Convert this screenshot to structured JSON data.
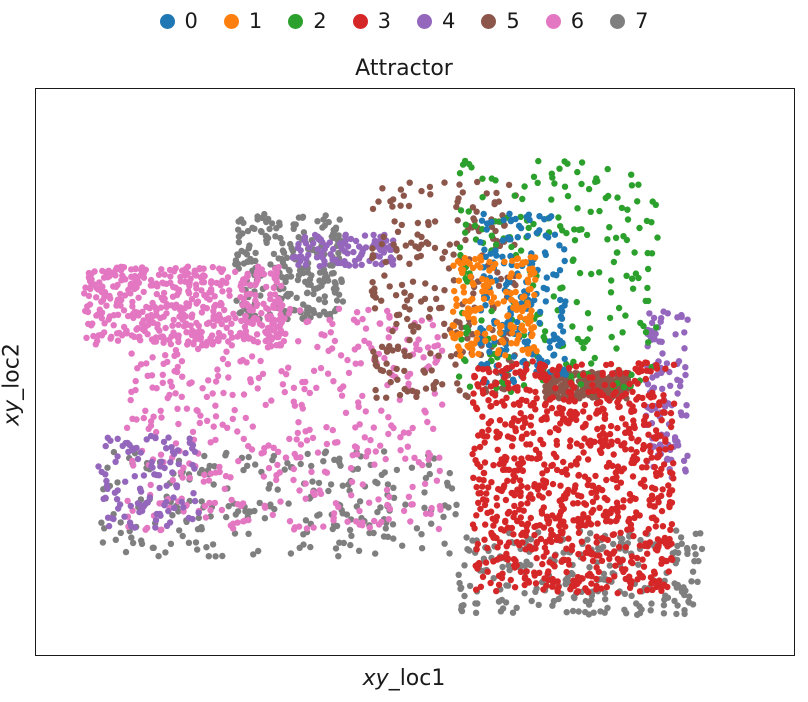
{
  "colors": {
    "0": "#1f77b4",
    "1": "#ff7f0e",
    "2": "#2ca02c",
    "3": "#d62728",
    "4": "#9467bd",
    "5": "#8c564b",
    "6": "#e377c2",
    "7": "#7f7f7f"
  },
  "chart_data": {
    "type": "scatter",
    "title": "Attractor",
    "xlabel_italic": "xy",
    "xlabel_rest": "_loc1",
    "ylabel_italic": "xy",
    "ylabel_rest": "_loc2",
    "legend_position": "top",
    "grid": false,
    "ticks": false,
    "series": [
      {
        "name": "0",
        "color": "#1f77b4",
        "point_count_estimate": 180,
        "regions": [
          {
            "x": [
              0.59,
              0.71
            ],
            "y": [
              0.48,
              0.8
            ]
          }
        ]
      },
      {
        "name": "1",
        "color": "#ff7f0e",
        "point_count_estimate": 160,
        "regions": [
          {
            "x": [
              0.55,
              0.67
            ],
            "y": [
              0.53,
              0.72
            ]
          }
        ]
      },
      {
        "name": "2",
        "color": "#2ca02c",
        "point_count_estimate": 220,
        "regions": [
          {
            "x": [
              0.56,
              0.84
            ],
            "y": [
              0.46,
              0.9
            ]
          }
        ]
      },
      {
        "name": "3",
        "color": "#d62728",
        "point_count_estimate": 900,
        "regions": [
          {
            "x": [
              0.58,
              0.86
            ],
            "y": [
              0.08,
              0.52
            ]
          }
        ]
      },
      {
        "name": "4",
        "color": "#9467bd",
        "point_count_estimate": 320,
        "regions": [
          {
            "x": [
              0.06,
              0.2
            ],
            "y": [
              0.2,
              0.38
            ]
          },
          {
            "x": [
              0.33,
              0.47
            ],
            "y": [
              0.7,
              0.76
            ]
          },
          {
            "x": [
              0.82,
              0.88
            ],
            "y": [
              0.3,
              0.62
            ]
          }
        ]
      },
      {
        "name": "5",
        "color": "#8c564b",
        "point_count_estimate": 520,
        "regions": [
          {
            "x": [
              0.44,
              0.64
            ],
            "y": [
              0.45,
              0.86
            ]
          },
          {
            "x": [
              0.68,
              0.8
            ],
            "y": [
              0.45,
              0.5
            ]
          }
        ]
      },
      {
        "name": "6",
        "color": "#e377c2",
        "point_count_estimate": 900,
        "regions": [
          {
            "x": [
              0.1,
              0.54
            ],
            "y": [
              0.2,
              0.62
            ]
          },
          {
            "x": [
              0.04,
              0.32
            ],
            "y": [
              0.55,
              0.7
            ]
          }
        ]
      },
      {
        "name": "7",
        "color": "#7f7f7f",
        "point_count_estimate": 700,
        "regions": [
          {
            "x": [
              0.06,
              0.56
            ],
            "y": [
              0.15,
              0.35
            ]
          },
          {
            "x": [
              0.56,
              0.9
            ],
            "y": [
              0.04,
              0.2
            ]
          },
          {
            "x": [
              0.25,
              0.4
            ],
            "y": [
              0.6,
              0.8
            ]
          }
        ]
      }
    ]
  }
}
